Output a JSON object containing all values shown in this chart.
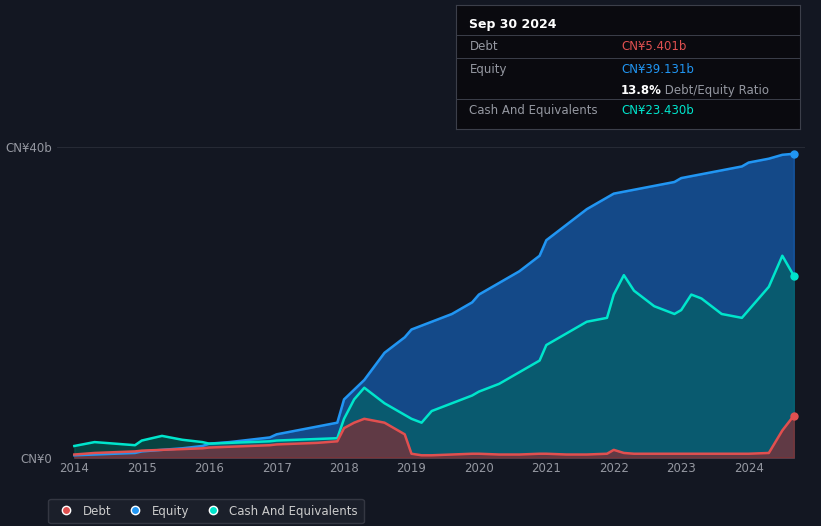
{
  "background_color": "#131722",
  "plot_bg_color": "#131722",
  "title_box": {
    "date": "Sep 30 2024",
    "debt_label": "Debt",
    "debt_value": "CN¥5.401b",
    "debt_color": "#e05050",
    "equity_label": "Equity",
    "equity_value": "CN¥39.131b",
    "equity_color": "#2196f3",
    "ratio_bold": "13.8%",
    "ratio_label": " Debt/Equity Ratio",
    "cash_label": "Cash And Equivalents",
    "cash_value": "CN¥23.430b",
    "cash_color": "#00e5cc"
  },
  "ytick_labels": [
    "CN¥0",
    "CN¥40b"
  ],
  "xlabel_ticks": [
    "2014",
    "2015",
    "2016",
    "2017",
    "2018",
    "2019",
    "2020",
    "2021",
    "2022",
    "2023",
    "2024"
  ],
  "legend": [
    {
      "label": "Debt",
      "color": "#e05050"
    },
    {
      "label": "Equity",
      "color": "#2196f3"
    },
    {
      "label": "Cash And Equivalents",
      "color": "#00e5cc"
    }
  ],
  "equity": {
    "x": [
      2014.0,
      2014.3,
      2014.6,
      2014.9,
      2015.0,
      2015.3,
      2015.6,
      2015.9,
      2016.0,
      2016.3,
      2016.6,
      2016.9,
      2017.0,
      2017.3,
      2017.6,
      2017.9,
      2018.0,
      2018.3,
      2018.6,
      2018.9,
      2019.0,
      2019.3,
      2019.6,
      2019.9,
      2020.0,
      2020.3,
      2020.6,
      2020.9,
      2021.0,
      2021.3,
      2021.6,
      2021.9,
      2022.0,
      2022.3,
      2022.6,
      2022.9,
      2023.0,
      2023.3,
      2023.6,
      2023.9,
      2024.0,
      2024.3,
      2024.5,
      2024.67
    ],
    "y": [
      0.3,
      0.4,
      0.5,
      0.6,
      0.8,
      1.0,
      1.2,
      1.5,
      1.8,
      2.0,
      2.3,
      2.6,
      3.0,
      3.5,
      4.0,
      4.5,
      7.5,
      10.0,
      13.5,
      15.5,
      16.5,
      17.5,
      18.5,
      20.0,
      21.0,
      22.5,
      24.0,
      26.0,
      28.0,
      30.0,
      32.0,
      33.5,
      34.0,
      34.5,
      35.0,
      35.5,
      36.0,
      36.5,
      37.0,
      37.5,
      38.0,
      38.5,
      39.0,
      39.131
    ]
  },
  "debt": {
    "x": [
      2014.0,
      2014.3,
      2014.6,
      2014.9,
      2015.0,
      2015.3,
      2015.6,
      2015.9,
      2016.0,
      2016.3,
      2016.6,
      2016.9,
      2017.0,
      2017.3,
      2017.6,
      2017.9,
      2018.0,
      2018.15,
      2018.3,
      2018.6,
      2018.9,
      2019.0,
      2019.15,
      2019.3,
      2019.6,
      2019.9,
      2020.0,
      2020.3,
      2020.6,
      2020.9,
      2021.0,
      2021.3,
      2021.6,
      2021.9,
      2022.0,
      2022.15,
      2022.3,
      2022.6,
      2022.9,
      2023.0,
      2023.3,
      2023.6,
      2023.9,
      2024.0,
      2024.3,
      2024.5,
      2024.67
    ],
    "y": [
      0.4,
      0.6,
      0.7,
      0.8,
      0.9,
      1.0,
      1.1,
      1.2,
      1.3,
      1.4,
      1.5,
      1.6,
      1.7,
      1.8,
      1.9,
      2.1,
      3.8,
      4.5,
      5.0,
      4.5,
      3.0,
      0.5,
      0.3,
      0.3,
      0.4,
      0.5,
      0.5,
      0.4,
      0.4,
      0.5,
      0.5,
      0.4,
      0.4,
      0.5,
      1.0,
      0.6,
      0.5,
      0.5,
      0.5,
      0.5,
      0.5,
      0.5,
      0.5,
      0.5,
      0.6,
      3.5,
      5.401
    ]
  },
  "cash": {
    "x": [
      2014.0,
      2014.3,
      2014.6,
      2014.9,
      2015.0,
      2015.3,
      2015.6,
      2015.9,
      2016.0,
      2016.3,
      2016.6,
      2016.9,
      2017.0,
      2017.3,
      2017.6,
      2017.9,
      2018.0,
      2018.15,
      2018.3,
      2018.6,
      2018.9,
      2019.0,
      2019.15,
      2019.3,
      2019.6,
      2019.9,
      2020.0,
      2020.3,
      2020.6,
      2020.9,
      2021.0,
      2021.3,
      2021.6,
      2021.9,
      2022.0,
      2022.15,
      2022.3,
      2022.6,
      2022.9,
      2023.0,
      2023.15,
      2023.3,
      2023.6,
      2023.9,
      2024.0,
      2024.3,
      2024.5,
      2024.67
    ],
    "y": [
      1.5,
      2.0,
      1.8,
      1.6,
      2.2,
      2.8,
      2.3,
      2.0,
      1.8,
      1.9,
      2.0,
      2.1,
      2.2,
      2.3,
      2.4,
      2.5,
      5.0,
      7.5,
      9.0,
      7.0,
      5.5,
      5.0,
      4.5,
      6.0,
      7.0,
      8.0,
      8.5,
      9.5,
      11.0,
      12.5,
      14.5,
      16.0,
      17.5,
      18.0,
      21.0,
      23.5,
      21.5,
      19.5,
      18.5,
      19.0,
      21.0,
      20.5,
      18.5,
      18.0,
      19.0,
      22.0,
      26.0,
      23.43
    ]
  },
  "ylim": [
    0,
    42
  ],
  "xlim": [
    2013.75,
    2024.83
  ],
  "grid_color": "#2a2e39",
  "line_width": 1.8
}
